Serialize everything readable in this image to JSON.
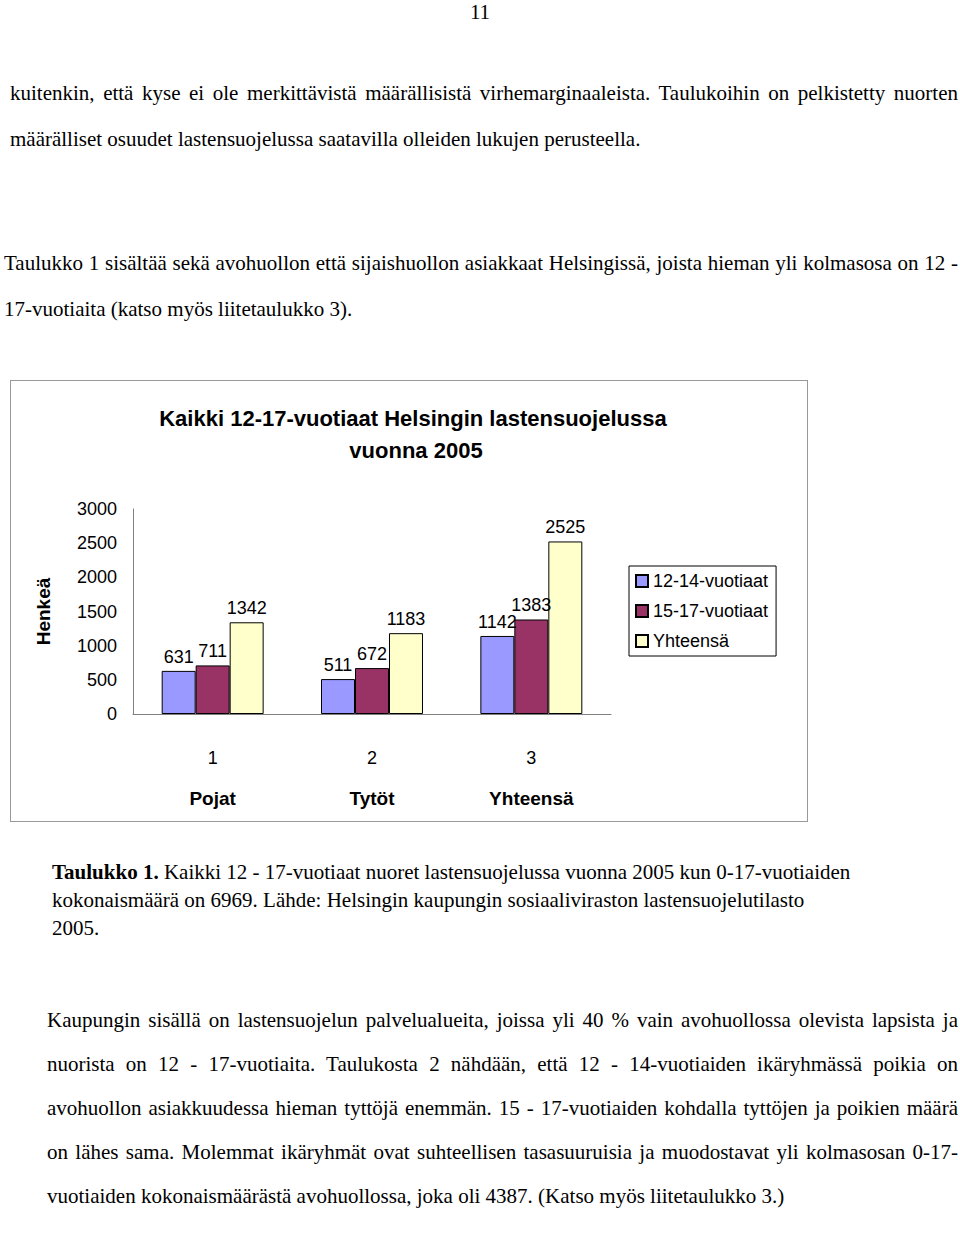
{
  "page_number": "11",
  "paragraphs_top": [
    "kuitenkin, että kyse ei ole merkittävistä määrällisistä virhemarginaaleista. Taulukoihin on pelkistetty nuorten määrälliset osuudet lastensuojelussa saatavilla olleiden lukujen perusteella.",
    "Taulukko 1 sisältää sekä avohuollon että sijaishuollon asiakkaat Helsingissä, joista hieman yli kolmasosa on 12 - 17-vuotiaita (katso myös liitetaulukko 3)."
  ],
  "chart_data": {
    "type": "bar",
    "title": "Kaikki 12-17-vuotiaat Helsingin lastensuojelussa vuonna 2005",
    "ylabel": "Henkeä",
    "categories": [
      "1",
      "2",
      "3"
    ],
    "category_names": [
      "Pojat",
      "Tytöt",
      "Yhteensä"
    ],
    "series": [
      {
        "name": "12-14-vuotiaat",
        "color": "#9999ff",
        "values": [
          631,
          511,
          1142
        ]
      },
      {
        "name": "15-17-vuotiaat",
        "color": "#993366",
        "values": [
          711,
          672,
          1383
        ]
      },
      {
        "name": "Yhteensä",
        "color": "#ffffcc",
        "values": [
          1342,
          1183,
          2525
        ]
      }
    ],
    "ylim": [
      0,
      3000
    ],
    "yticks": [
      0,
      500,
      1000,
      1500,
      2000,
      2500,
      3000
    ],
    "grid": false,
    "legend": "right",
    "data_labels": true
  },
  "caption": {
    "label": "Taulukko 1.",
    "text": "Kaikki 12 - 17-vuotiaat nuoret lastensuojelussa vuonna 2005 kun 0-17-vuotiaiden kokonaismäärä on 6969. Lähde: Helsingin kaupungin sosiaaliviraston lastensuojelutilasto 2005."
  },
  "paragraphs_bottom": [
    "Kaupungin sisällä on lastensuojelun palvelualueita, joissa yli 40 % vain avohuollossa olevista lapsista ja nuorista on 12 - 17-vuotiaita. Taulukosta 2 nähdään, että 12 - 14-vuotiaiden ikäryhmässä poikia on avohuollon asiakkuudessa hieman tyttöjä enemmän. 15 - 17-vuotiaiden kohdalla tyttöjen ja poikien määrä on lähes sama. Molemmat ikäryhmät ovat suhteellisen tasasuuruisia ja muodostavat yli kolmasosan 0-17-vuotiaiden kokonaismäärästä avohuollossa, joka oli 4387. (Katso myös liitetaulukko 3.)"
  ]
}
